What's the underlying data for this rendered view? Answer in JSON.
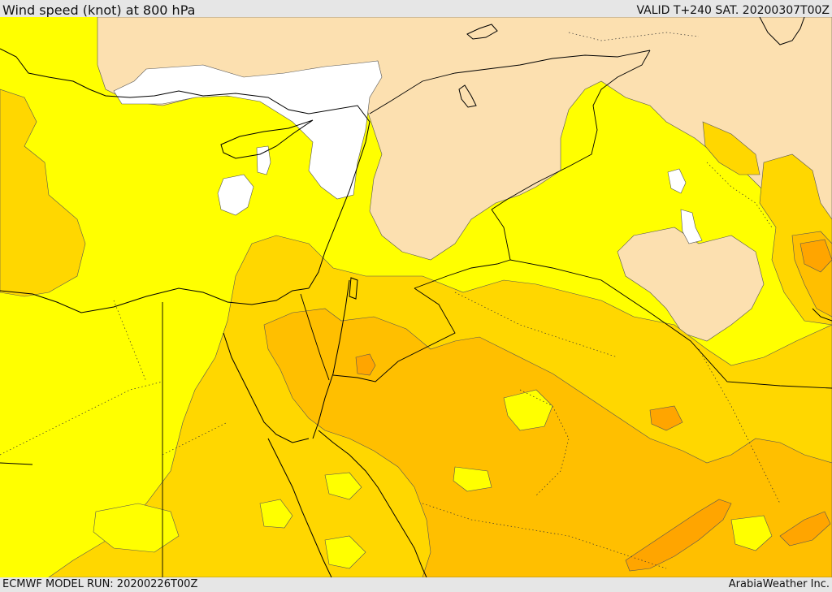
{
  "header": {
    "title": "Wind speed (knot) at 800 hPa",
    "valid": "VALID T+240 SAT. 20200307T00Z"
  },
  "footer": {
    "model_run": "ECMWF MODEL RUN: 20200226T00Z",
    "credit": "ArabiaWeather Inc."
  },
  "colors": {
    "calm": "#ffffff",
    "light": "#fce0b0",
    "yellow": "#ffff00",
    "gold": "#ffd700",
    "amber": "#ffbf00",
    "orange": "#ffa500",
    "outline": "#000000"
  }
}
